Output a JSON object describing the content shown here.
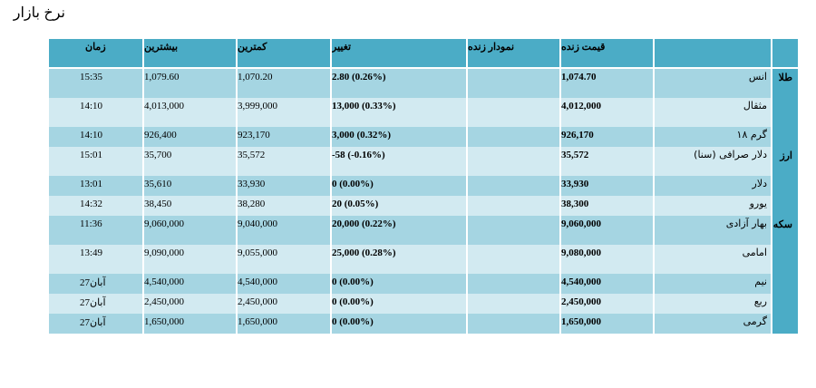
{
  "page_title": "نرخ بازار",
  "headers": {
    "live_price": "قیمت زنده",
    "live_chart": "نمودار زنده",
    "change": "تغییر",
    "min": "کمترین",
    "max": "بیشترین",
    "time": "زمان"
  },
  "groups": [
    {
      "label": "طلا",
      "rows": [
        {
          "name": "انس",
          "live": "1,074.70",
          "change": "2.80 (0.26%)",
          "min": "1,070.20",
          "max": "1,079.60",
          "time": "15:35"
        },
        {
          "name": "مثقال",
          "live": "4,012,000",
          "change": "13,000 (0.33%)",
          "min": "3,999,000",
          "max": "4,013,000",
          "time": "14:10"
        },
        {
          "name": "گرم ۱۸",
          "live": "926,170",
          "change": "3,000 (0.32%)",
          "min": "923,170",
          "max": "926,400",
          "time": "14:10"
        }
      ]
    },
    {
      "label": "ارز",
      "rows": [
        {
          "name": "دلار صرافی (سنا)",
          "live": "35,572",
          "change": "-58 (-0.16%)",
          "min": "35,572",
          "max": "35,700",
          "time": "15:01"
        },
        {
          "name": "دلار",
          "live": "33,930",
          "change": "0 (0.00%)",
          "min": "33,930",
          "max": "35,610",
          "time": "13:01"
        },
        {
          "name": "یورو",
          "live": "38,300",
          "change": "20 (0.05%)",
          "min": "38,280",
          "max": "38,450",
          "time": "14:32"
        }
      ]
    },
    {
      "label": "سکه",
      "rows": [
        {
          "name": "بهار آزادی",
          "live": "9,060,000",
          "change": "20,000 (0.22%)",
          "min": "9,040,000",
          "max": "9,060,000",
          "time": "11:36"
        },
        {
          "name": "امامی",
          "live": "9,080,000",
          "change": "25,000 (0.28%)",
          "min": "9,055,000",
          "max": "9,090,000",
          "time": "13:49"
        },
        {
          "name": "نیم",
          "live": "4,540,000",
          "change": "0 (0.00%)",
          "min": "4,540,000",
          "max": "4,540,000",
          "time": "27آبان"
        },
        {
          "name": "ربع",
          "live": "2,450,000",
          "change": "0 (0.00%)",
          "min": "2,450,000",
          "max": "2,450,000",
          "time": "27آبان"
        },
        {
          "name": "گرمی",
          "live": "1,650,000",
          "change": "0 (0.00%)",
          "min": "1,650,000",
          "max": "1,650,000",
          "time": "27آبان"
        }
      ]
    }
  ],
  "colors": {
    "header": "#4bacc6",
    "row_dark": "#a5d5e2",
    "row_light": "#d2eaf1"
  }
}
